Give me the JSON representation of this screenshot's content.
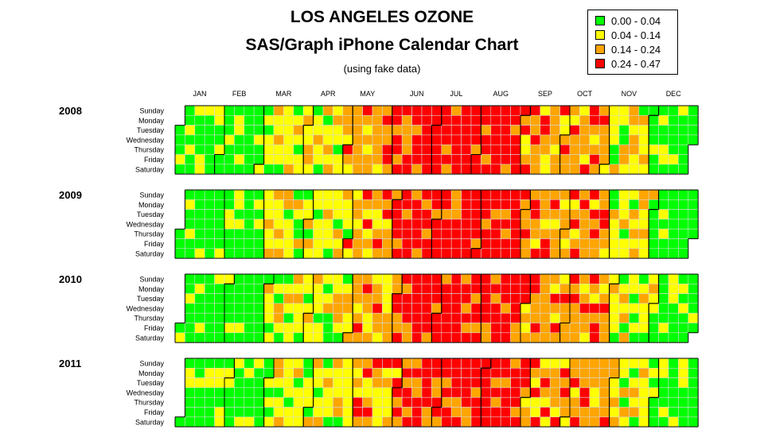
{
  "title": "LOS ANGELES OZONE",
  "subtitle": "SAS/Graph iPhone Calendar Chart",
  "note": "(using fake data)",
  "legend": [
    {
      "label": "0.00 - 0.04",
      "color": "#00ff00"
    },
    {
      "label": "0.04 - 0.14",
      "color": "#ffff00"
    },
    {
      "label": "0.14 - 0.24",
      "color": "#ffa500"
    },
    {
      "label": "0.24 - 0.47",
      "color": "#ff0000"
    }
  ],
  "chart_data": {
    "type": "heatmap",
    "title": "LOS ANGELES OZONE",
    "subtitle": "SAS/Graph iPhone Calendar Chart",
    "months": [
      "JAN",
      "FEB",
      "MAR",
      "APR",
      "MAY",
      "JUN",
      "JUL",
      "AUG",
      "SEP",
      "OCT",
      "NOV",
      "DEC"
    ],
    "weekdays": [
      "Sunday",
      "Monday",
      "Tuesday",
      "Wednesday",
      "Thursday",
      "Friday",
      "Saturday"
    ],
    "years": [
      "2008",
      "2009",
      "2010",
      "2011"
    ],
    "bins": [
      [
        0.0,
        0.04
      ],
      [
        0.04,
        0.14
      ],
      [
        0.14,
        0.24
      ],
      [
        0.24,
        0.47
      ]
    ],
    "monthly_level_pattern": [
      "0.00 - 0.04",
      "0.00 - 0.04",
      "0.04 - 0.14",
      "0.04 - 0.14",
      "0.14 - 0.24",
      "0.24 - 0.47",
      "0.24 - 0.47",
      "0.24 - 0.47",
      "0.14 - 0.24",
      "0.14 - 0.24",
      "0.04 - 0.14",
      "0.00 - 0.04"
    ],
    "grid": true
  }
}
